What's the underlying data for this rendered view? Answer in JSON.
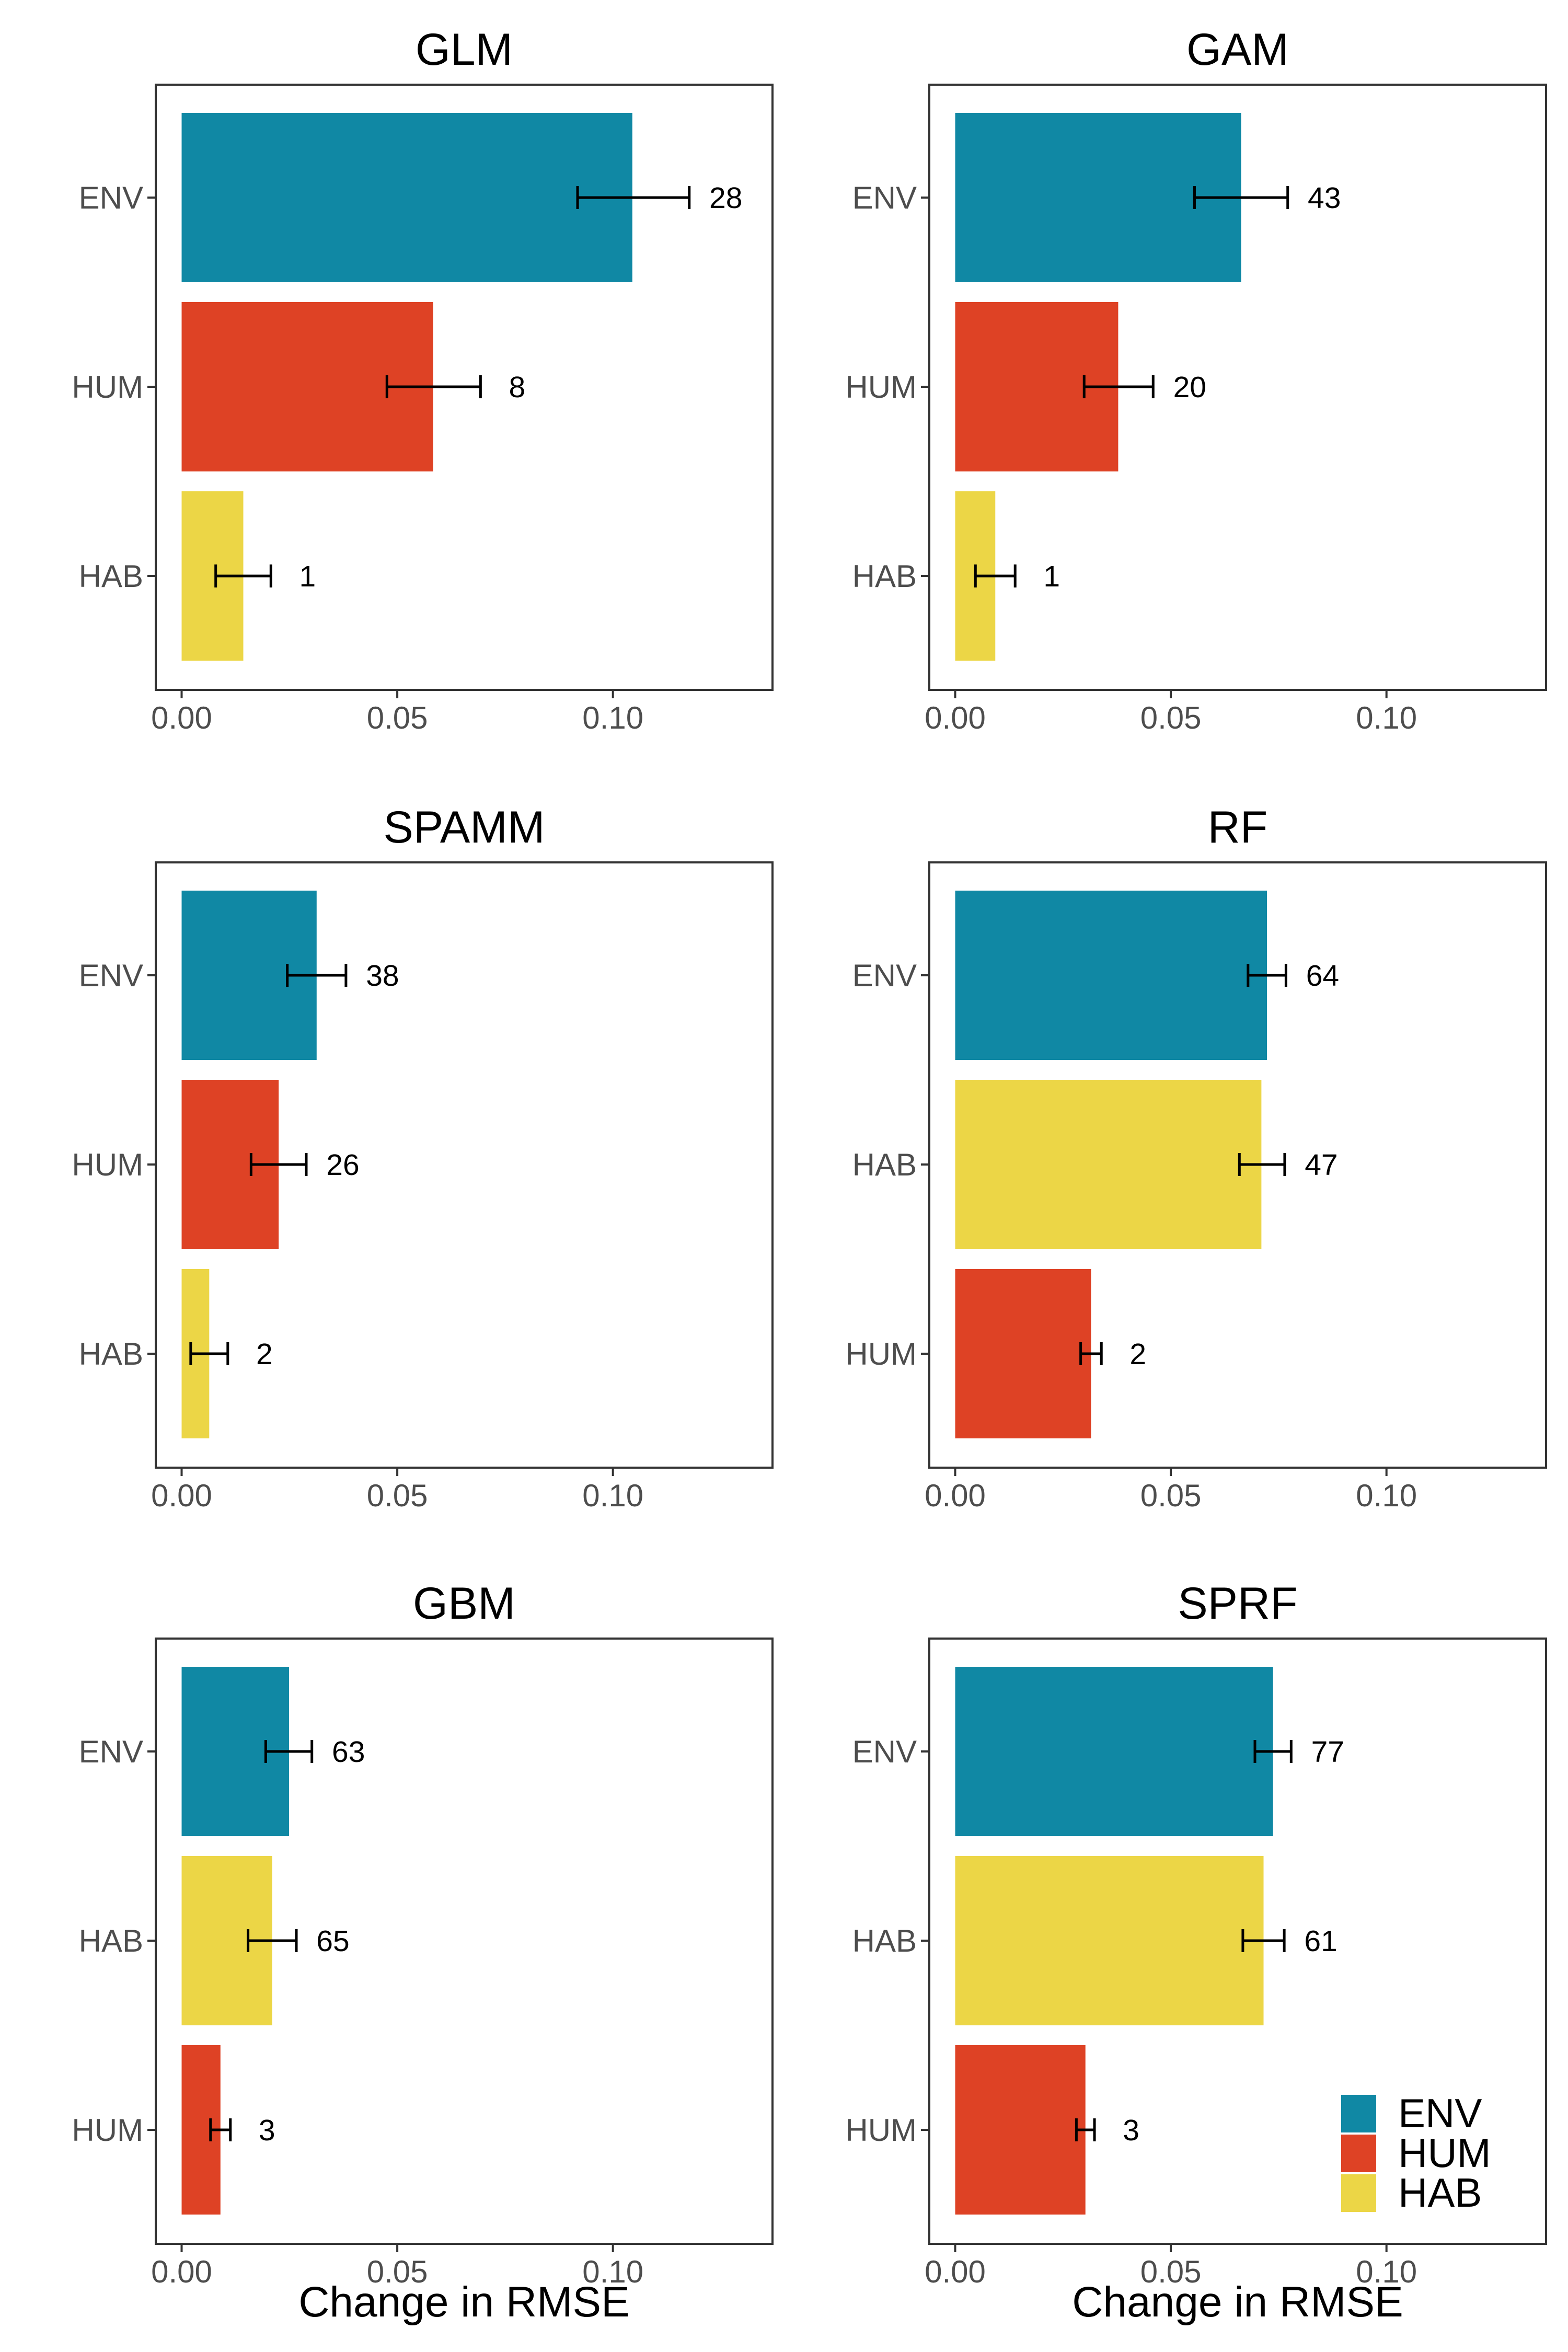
{
  "figure": {
    "xlabel": "Change in RMSE",
    "xlim": [
      -0.006,
      0.137
    ],
    "xticks": [
      {
        "value": 0.0,
        "label": "0.00"
      },
      {
        "value": 0.05,
        "label": "0.05"
      },
      {
        "value": 0.1,
        "label": "0.10"
      }
    ]
  },
  "colors": {
    "ENV": "#1088a4",
    "HUM": "#de4225",
    "HAB": "#ecd646"
  },
  "legend": {
    "placement": "bottom-right",
    "items": [
      {
        "label": "ENV",
        "key": "ENV"
      },
      {
        "label": "HUM",
        "key": "HUM"
      },
      {
        "label": "HAB",
        "key": "HAB"
      }
    ]
  },
  "chart_data": [
    {
      "type": "bar",
      "orientation": "horizontal",
      "title": "GLM",
      "categories": [
        "ENV",
        "HUM",
        "HAB"
      ],
      "values": [
        0.1045,
        0.0583,
        0.0143
      ],
      "error_low": [
        0.0918,
        0.0476,
        0.0079
      ],
      "error_high": [
        0.1177,
        0.0693,
        0.0207
      ],
      "labels": [
        "28",
        "8",
        "1"
      ]
    },
    {
      "type": "bar",
      "orientation": "horizontal",
      "title": "GAM",
      "categories": [
        "ENV",
        "HUM",
        "HAB"
      ],
      "values": [
        0.0663,
        0.0378,
        0.0093
      ],
      "error_low": [
        0.0555,
        0.0299,
        0.0047
      ],
      "error_high": [
        0.0771,
        0.0459,
        0.0139
      ],
      "labels": [
        "43",
        "20",
        "1"
      ]
    },
    {
      "type": "bar",
      "orientation": "horizontal",
      "title": "SPAMM",
      "categories": [
        "ENV",
        "HUM",
        "HAB"
      ],
      "values": [
        0.0313,
        0.0225,
        0.0064
      ],
      "error_low": [
        0.0245,
        0.0161,
        0.0021
      ],
      "error_high": [
        0.0381,
        0.0289,
        0.0107
      ],
      "labels": [
        "38",
        "26",
        "2"
      ]
    },
    {
      "type": "bar",
      "orientation": "horizontal",
      "title": "RF",
      "categories": [
        "ENV",
        "HAB",
        "HUM"
      ],
      "values": [
        0.0723,
        0.071,
        0.0315
      ],
      "error_low": [
        0.0679,
        0.0659,
        0.0291
      ],
      "error_high": [
        0.0767,
        0.0764,
        0.0339
      ],
      "labels": [
        "64",
        "47",
        "2"
      ]
    },
    {
      "type": "bar",
      "orientation": "horizontal",
      "title": "GBM",
      "categories": [
        "ENV",
        "HAB",
        "HUM"
      ],
      "values": [
        0.0249,
        0.021,
        0.009
      ],
      "error_low": [
        0.0195,
        0.0154,
        0.0067
      ],
      "error_high": [
        0.0302,
        0.0266,
        0.0113
      ],
      "labels": [
        "63",
        "65",
        "3"
      ]
    },
    {
      "type": "bar",
      "orientation": "horizontal",
      "title": "SPRF",
      "categories": [
        "ENV",
        "HAB",
        "HUM"
      ],
      "values": [
        0.0737,
        0.0715,
        0.0302
      ],
      "error_low": [
        0.0695,
        0.0667,
        0.0281
      ],
      "error_high": [
        0.0779,
        0.0763,
        0.0323
      ],
      "labels": [
        "77",
        "61",
        "3"
      ]
    }
  ]
}
